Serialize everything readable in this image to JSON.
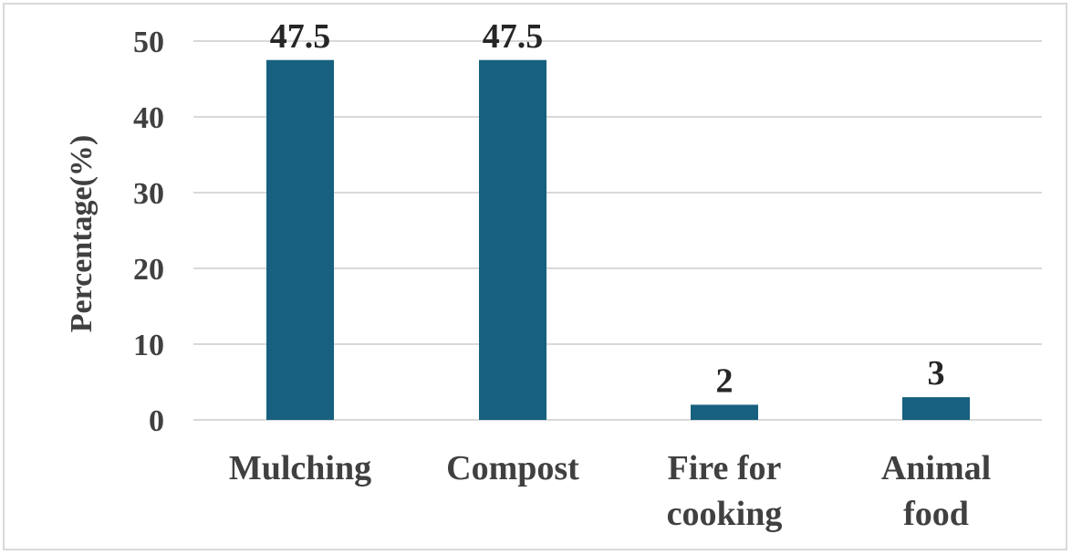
{
  "chart_data": {
    "type": "bar",
    "title": "",
    "xlabel": "",
    "ylabel": "Percentage(%)",
    "categories": [
      [
        "Mulching"
      ],
      [
        "Compost"
      ],
      [
        "Fire for",
        "cooking"
      ],
      [
        "Animal",
        "food"
      ]
    ],
    "values": [
      47.5,
      47.5,
      2,
      3
    ],
    "data_labels": [
      "47.5",
      "47.5",
      "2",
      "3"
    ],
    "ylim": [
      0,
      50
    ],
    "yticks": [
      0,
      10,
      20,
      30,
      40,
      50
    ],
    "grid": true,
    "legend": "none",
    "colors": {
      "bar": "#17607f",
      "grid": "#d9d9d9",
      "text": "#404040",
      "data_label": "#262626",
      "border": "#d9d9d9"
    }
  }
}
